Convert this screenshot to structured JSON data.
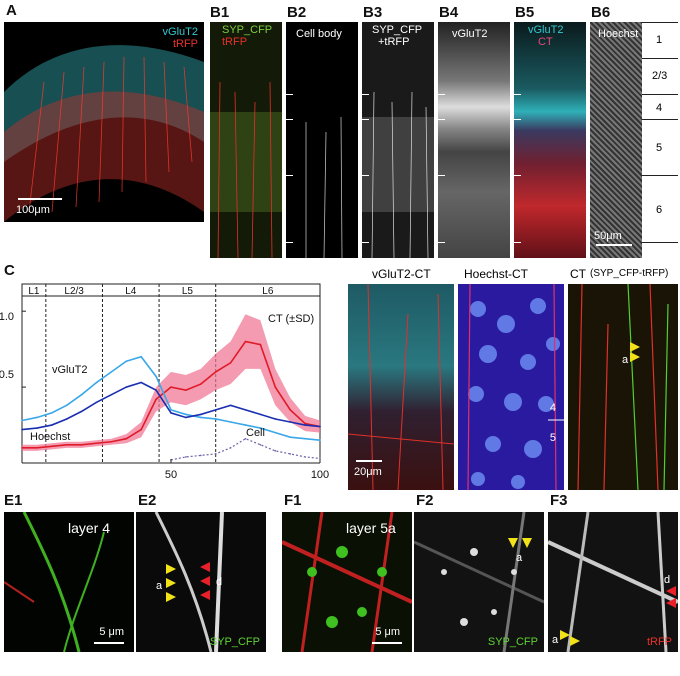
{
  "panels": {
    "A": {
      "label": "A",
      "vglut2": "vGluT2",
      "trfp": "tRFP",
      "scale": "100μm"
    },
    "B1": {
      "label": "B1",
      "l1": "SYP_CFP",
      "l2": "tRFP"
    },
    "B2": {
      "label": "B2",
      "l1": "Cell body"
    },
    "B3": {
      "label": "B3",
      "l1": "SYP_CFP",
      "l2": "+tRFP"
    },
    "B4": {
      "label": "B4",
      "l1": "vGluT2"
    },
    "B5": {
      "label": "B5",
      "l1": "vGluT2",
      "l2": "CT"
    },
    "B6": {
      "label": "B6",
      "l1": "Hoechst",
      "scale": "50μm"
    },
    "layers": [
      "1",
      "2/3",
      "4",
      "5",
      "6"
    ],
    "C": {
      "label": "C",
      "layers": [
        "L1",
        "L2/3",
        "L4",
        "L5",
        "L6"
      ]
    },
    "D1": {
      "label": "D1",
      "title": "vGluT2-CT",
      "scale": "20μm"
    },
    "D2": {
      "label": "D2",
      "title": "Hoechst-CT",
      "l4": "4",
      "l5": "5"
    },
    "D3": {
      "label": "D3",
      "title_main": "CT",
      "title_sub": "(SYP_CFP-tRFP)",
      "a": "a"
    },
    "E1": {
      "label": "E1",
      "text": "layer 4",
      "scale": "5 μm"
    },
    "E2": {
      "label": "E2",
      "a": "a",
      "d": "d",
      "channel": "SYP_CFP"
    },
    "F1": {
      "label": "F1",
      "text": "layer 5a",
      "scale": "5 μm"
    },
    "F2": {
      "label": "F2",
      "a": "a",
      "channel": "SYP_CFP"
    },
    "F3": {
      "label": "F3",
      "a": "a",
      "d": "d",
      "channel": "tRFP"
    }
  },
  "colors": {
    "cyan": "#34c8d0",
    "red": "#e8302a",
    "green": "#5fd334",
    "yellow": "#f2e318",
    "pink": "#e8487a"
  },
  "chart_data": {
    "type": "line",
    "x": [
      0,
      5,
      10,
      15,
      20,
      25,
      30,
      35,
      40,
      45,
      50,
      55,
      60,
      65,
      70,
      75,
      80,
      85,
      90,
      95,
      100
    ],
    "xlim": [
      0,
      100
    ],
    "ylim": [
      0,
      1.1
    ],
    "xticks": [
      "50",
      "100"
    ],
    "yticks": [
      "0.5",
      "1.0"
    ],
    "layer_boundaries": [
      8,
      27,
      46,
      65
    ],
    "series": [
      {
        "name": "CT (±SD)",
        "color": "#e01b28",
        "values": [
          0.1,
          0.1,
          0.11,
          0.12,
          0.12,
          0.13,
          0.14,
          0.16,
          0.22,
          0.42,
          0.5,
          0.48,
          0.52,
          0.6,
          0.66,
          0.8,
          0.78,
          0.5,
          0.35,
          0.26,
          0.24
        ]
      },
      {
        "name": "vGluT2",
        "color": "#3aa8e8",
        "values": [
          0.28,
          0.3,
          0.33,
          0.38,
          0.45,
          0.53,
          0.6,
          0.67,
          0.7,
          0.57,
          0.35,
          0.32,
          0.3,
          0.29,
          0.27,
          0.25,
          0.23,
          0.2,
          0.17,
          0.16,
          0.15
        ]
      },
      {
        "name": "Hoechst",
        "color": "#1a2fb0",
        "values": [
          0.22,
          0.23,
          0.25,
          0.29,
          0.34,
          0.4,
          0.45,
          0.5,
          0.53,
          0.48,
          0.33,
          0.3,
          0.32,
          0.35,
          0.38,
          0.35,
          0.32,
          0.29,
          0.27,
          0.25,
          0.24
        ]
      },
      {
        "name": "Cell",
        "color": "#7060a8",
        "values": [
          null,
          null,
          null,
          null,
          null,
          null,
          null,
          null,
          null,
          null,
          0.02,
          0.04,
          0.05,
          0.06,
          0.1,
          0.16,
          0.12,
          0.08,
          0.06,
          0.04,
          0.03
        ]
      }
    ],
    "sd_band": [
      0.02,
      0.02,
      0.02,
      0.02,
      0.02,
      0.02,
      0.02,
      0.03,
      0.05,
      0.08,
      0.1,
      0.1,
      0.1,
      0.12,
      0.14,
      0.18,
      0.16,
      0.12,
      0.08,
      0.05,
      0.04
    ]
  }
}
